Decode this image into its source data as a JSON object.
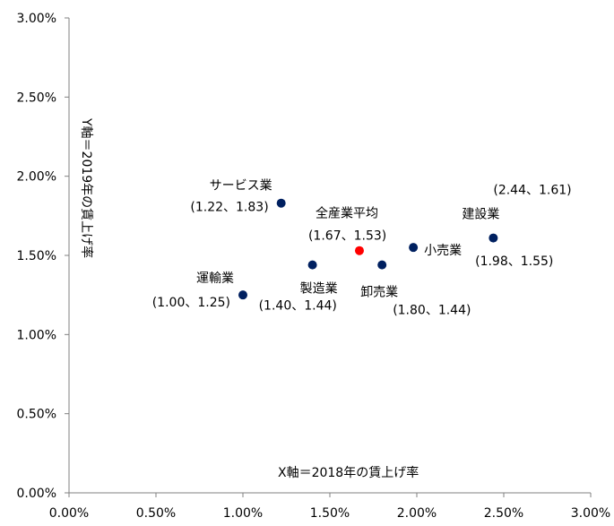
{
  "chart_data": {
    "type": "scatter",
    "xlim": [
      0,
      3
    ],
    "ylim": [
      0,
      3
    ],
    "x_ticks": [
      "0.00%",
      "0.50%",
      "1.00%",
      "1.50%",
      "2.00%",
      "2.50%",
      "3.00%"
    ],
    "y_ticks": [
      "0.00%",
      "0.50%",
      "1.00%",
      "1.50%",
      "2.00%",
      "2.50%",
      "3.00%"
    ],
    "xlabel": "X軸＝2018年の賃上げ率",
    "ylabel": "Y軸＝2019年の賃上げ率",
    "grid": false,
    "points": [
      {
        "name": "運輸業",
        "x": 1.0,
        "y": 1.25,
        "coord": "(1.00、1.25)",
        "color": "#002060"
      },
      {
        "name": "サービス業",
        "x": 1.22,
        "y": 1.83,
        "coord": "(1.22、1.83)",
        "color": "#002060"
      },
      {
        "name": "製造業",
        "x": 1.4,
        "y": 1.44,
        "coord": "(1.40、1.44)",
        "color": "#002060"
      },
      {
        "name": "全産業平均",
        "x": 1.67,
        "y": 1.53,
        "coord": "(1.67、1.53)",
        "color": "#ff0000"
      },
      {
        "name": "卸売業",
        "x": 1.8,
        "y": 1.44,
        "coord": "(1.80、1.44)",
        "color": "#002060"
      },
      {
        "name": "小売業",
        "x": 1.98,
        "y": 1.55,
        "coord": "(1.98、1.55)",
        "color": "#002060"
      },
      {
        "name": "建設業",
        "x": 2.44,
        "y": 1.61,
        "coord": "(2.44、1.61)",
        "color": "#002060"
      }
    ]
  }
}
